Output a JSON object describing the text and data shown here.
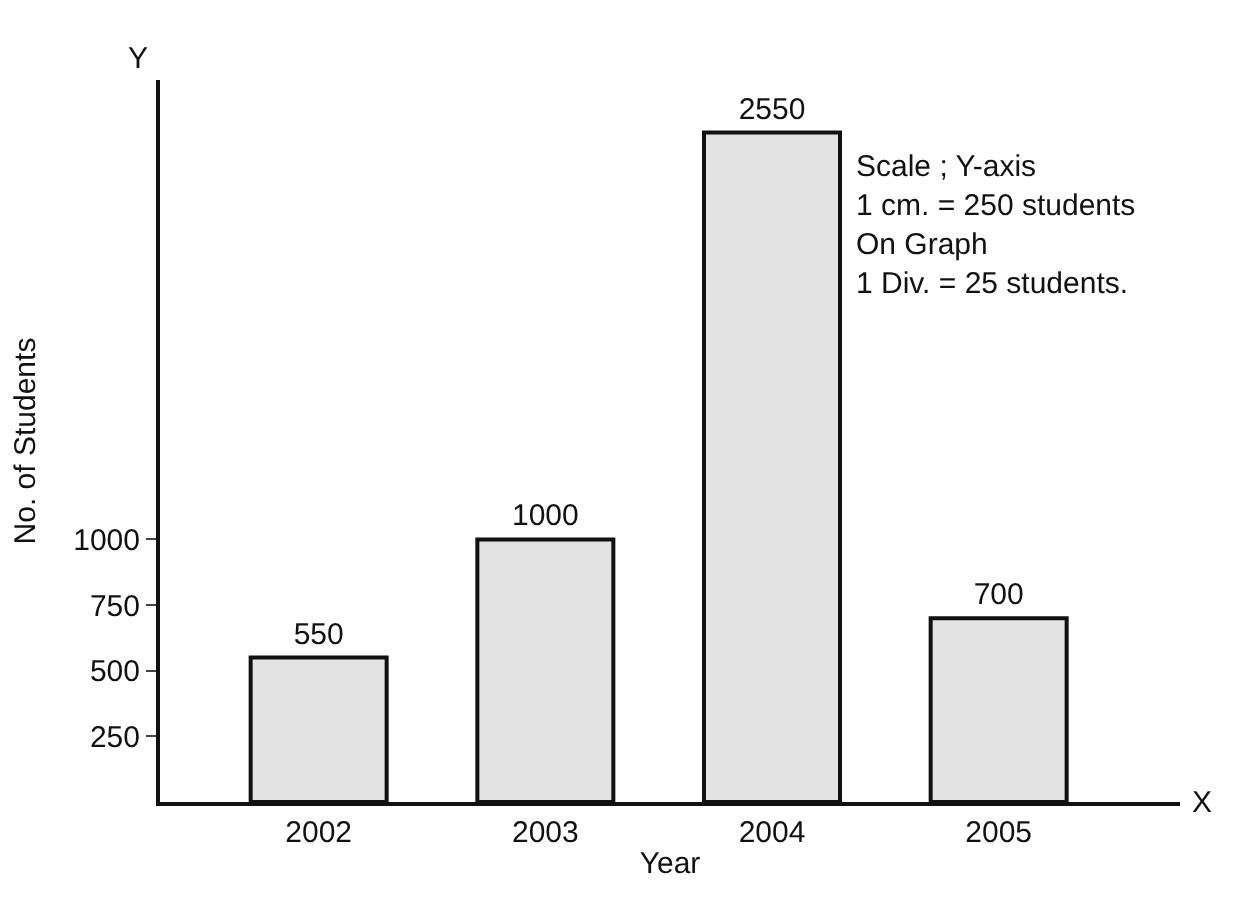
{
  "chart_data": {
    "type": "bar",
    "xlabel": "Year",
    "ylabel": "No. of Students",
    "categories": [
      "2002",
      "2003",
      "2004",
      "2005"
    ],
    "values": [
      550,
      1000,
      2550,
      700
    ],
    "color": "#e3e3e3",
    "ylim": [
      0,
      2750
    ],
    "yticks": [
      250,
      500,
      750,
      1000
    ],
    "data_labels": true,
    "annotations": [
      "Y",
      "X",
      "Scale ; Y-axis\n1 cm. = 250 students\nOn Graph\n1 Div. = 25 students."
    ]
  }
}
